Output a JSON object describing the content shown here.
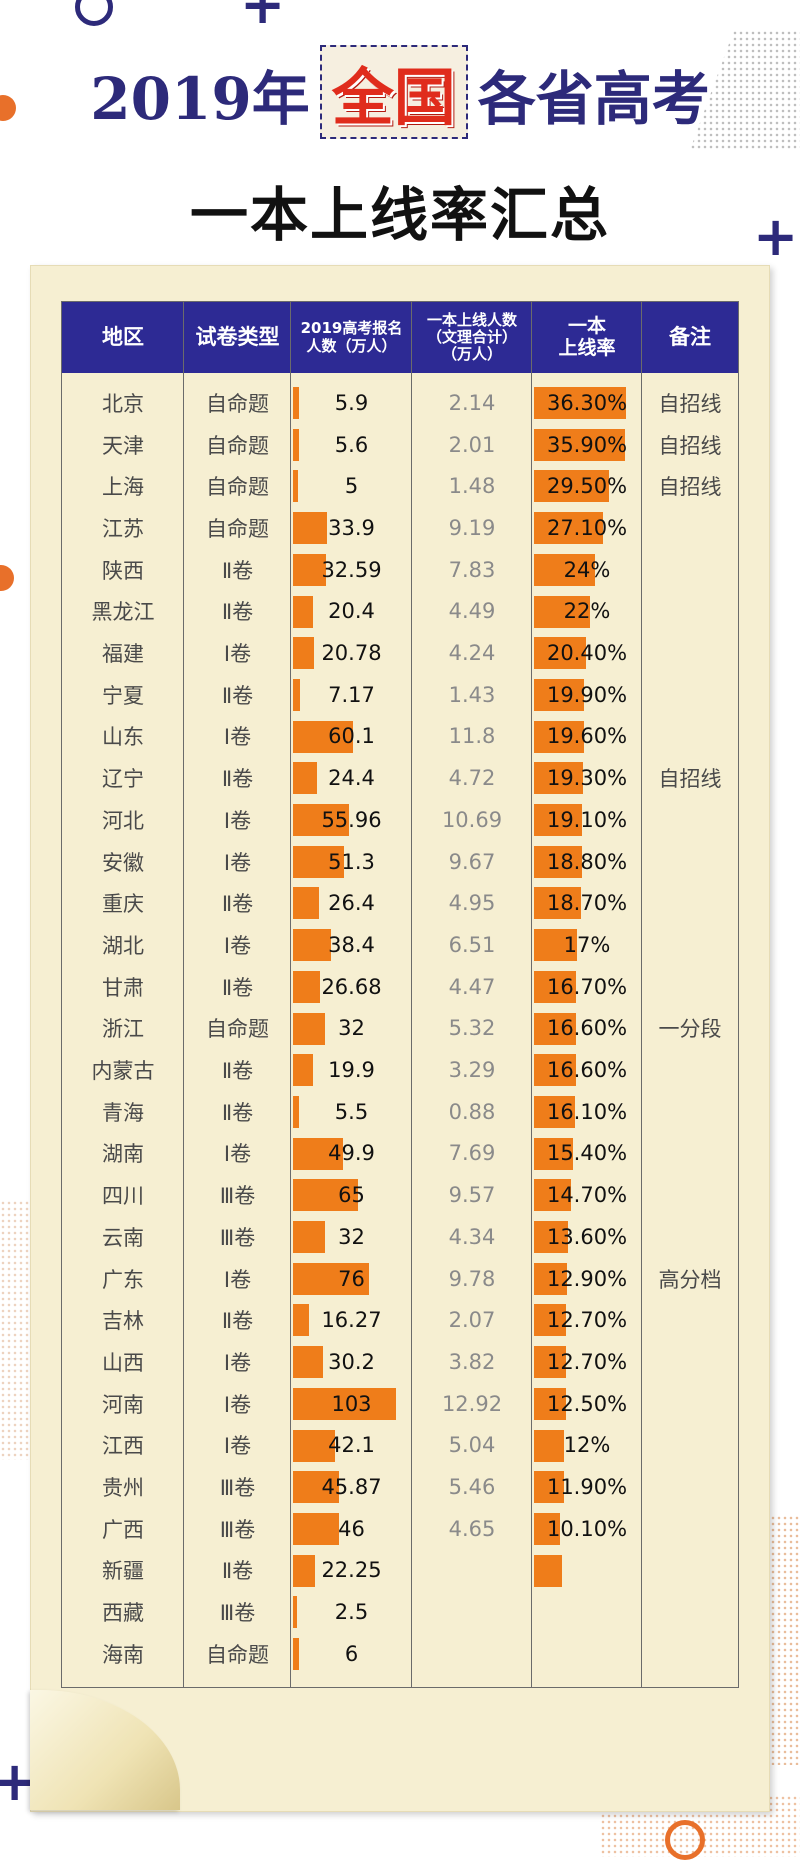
{
  "title": {
    "prefix": "2019年",
    "highlight": "全国",
    "suffix": "各省高考",
    "line2": "一本上线率汇总"
  },
  "colors": {
    "header_bg": "#2d2a94",
    "bar": "#ef7d1a",
    "highlight_text": "#e02c1c",
    "paper": "#f6efd2"
  },
  "table": {
    "headers": {
      "region": "地区",
      "paper_type": "试卷类型",
      "registrants": [
        "2019高考报名",
        "人数（万人）"
      ],
      "passers": [
        "一本上线人数",
        "（文理合计）",
        "（万人）"
      ],
      "rate": [
        "一本",
        "上线率"
      ],
      "note": "备注"
    }
  },
  "chart_data": {
    "type": "table",
    "columns": [
      "地区",
      "试卷类型",
      "2019高考报名人数（万人）",
      "一本上线人数（文理合计）（万人）",
      "一本上线率",
      "备注"
    ],
    "registrants_max": 103,
    "rate_max": 36.3,
    "rows": [
      {
        "region": "北京",
        "type": "自命题",
        "registrants": "5.9",
        "passers": "2.14",
        "rate": "36.30%",
        "rate_value": 36.3,
        "note": "自招线"
      },
      {
        "region": "天津",
        "type": "自命题",
        "registrants": "5.6",
        "passers": "2.01",
        "rate": "35.90%",
        "rate_value": 35.9,
        "note": "自招线"
      },
      {
        "region": "上海",
        "type": "自命题",
        "registrants": "5",
        "passers": "1.48",
        "rate": "29.50%",
        "rate_value": 29.5,
        "note": "自招线"
      },
      {
        "region": "江苏",
        "type": "自命题",
        "registrants": "33.9",
        "passers": "9.19",
        "rate": "27.10%",
        "rate_value": 27.1,
        "note": ""
      },
      {
        "region": "陕西",
        "type": "Ⅱ卷",
        "registrants": "32.59",
        "passers": "7.83",
        "rate": "24%",
        "rate_value": 24,
        "note": ""
      },
      {
        "region": "黑龙江",
        "type": "Ⅱ卷",
        "registrants": "20.4",
        "passers": "4.49",
        "rate": "22%",
        "rate_value": 22,
        "note": ""
      },
      {
        "region": "福建",
        "type": "Ⅰ卷",
        "registrants": "20.78",
        "passers": "4.24",
        "rate": "20.40%",
        "rate_value": 20.4,
        "note": ""
      },
      {
        "region": "宁夏",
        "type": "Ⅱ卷",
        "registrants": "7.17",
        "passers": "1.43",
        "rate": "19.90%",
        "rate_value": 19.9,
        "note": ""
      },
      {
        "region": "山东",
        "type": "Ⅰ卷",
        "registrants": "60.1",
        "passers": "11.8",
        "rate": "19.60%",
        "rate_value": 19.6,
        "note": ""
      },
      {
        "region": "辽宁",
        "type": "Ⅱ卷",
        "registrants": "24.4",
        "passers": "4.72",
        "rate": "19.30%",
        "rate_value": 19.3,
        "note": "自招线"
      },
      {
        "region": "河北",
        "type": "Ⅰ卷",
        "registrants": "55.96",
        "passers": "10.69",
        "rate": "19.10%",
        "rate_value": 19.1,
        "note": ""
      },
      {
        "region": "安徽",
        "type": "Ⅰ卷",
        "registrants": "51.3",
        "passers": "9.67",
        "rate": "18.80%",
        "rate_value": 18.8,
        "note": ""
      },
      {
        "region": "重庆",
        "type": "Ⅱ卷",
        "registrants": "26.4",
        "passers": "4.95",
        "rate": "18.70%",
        "rate_value": 18.7,
        "note": ""
      },
      {
        "region": "湖北",
        "type": "Ⅰ卷",
        "registrants": "38.4",
        "passers": "6.51",
        "rate": "17%",
        "rate_value": 17,
        "note": ""
      },
      {
        "region": "甘肃",
        "type": "Ⅱ卷",
        "registrants": "26.68",
        "passers": "4.47",
        "rate": "16.70%",
        "rate_value": 16.7,
        "note": ""
      },
      {
        "region": "浙江",
        "type": "自命题",
        "registrants": "32",
        "passers": "5.32",
        "rate": "16.60%",
        "rate_value": 16.6,
        "note": "一分段"
      },
      {
        "region": "内蒙古",
        "type": "Ⅱ卷",
        "registrants": "19.9",
        "passers": "3.29",
        "rate": "16.60%",
        "rate_value": 16.6,
        "note": ""
      },
      {
        "region": "青海",
        "type": "Ⅱ卷",
        "registrants": "5.5",
        "passers": "0.88",
        "rate": "16.10%",
        "rate_value": 16.1,
        "note": ""
      },
      {
        "region": "湖南",
        "type": "Ⅰ卷",
        "registrants": "49.9",
        "passers": "7.69",
        "rate": "15.40%",
        "rate_value": 15.4,
        "note": ""
      },
      {
        "region": "四川",
        "type": "Ⅲ卷",
        "registrants": "65",
        "passers": "9.57",
        "rate": "14.70%",
        "rate_value": 14.7,
        "note": ""
      },
      {
        "region": "云南",
        "type": "Ⅲ卷",
        "registrants": "32",
        "passers": "4.34",
        "rate": "13.60%",
        "rate_value": 13.6,
        "note": ""
      },
      {
        "region": "广东",
        "type": "Ⅰ卷",
        "registrants": "76",
        "passers": "9.78",
        "rate": "12.90%",
        "rate_value": 12.9,
        "note": "高分档"
      },
      {
        "region": "吉林",
        "type": "Ⅱ卷",
        "registrants": "16.27",
        "passers": "2.07",
        "rate": "12.70%",
        "rate_value": 12.7,
        "note": ""
      },
      {
        "region": "山西",
        "type": "Ⅰ卷",
        "registrants": "30.2",
        "passers": "3.82",
        "rate": "12.70%",
        "rate_value": 12.7,
        "note": ""
      },
      {
        "region": "河南",
        "type": "Ⅰ卷",
        "registrants": "103",
        "passers": "12.92",
        "rate": "12.50%",
        "rate_value": 12.5,
        "note": ""
      },
      {
        "region": "江西",
        "type": "Ⅰ卷",
        "registrants": "42.1",
        "passers": "5.04",
        "rate": "12%",
        "rate_value": 12,
        "note": ""
      },
      {
        "region": "贵州",
        "type": "Ⅲ卷",
        "registrants": "45.87",
        "passers": "5.46",
        "rate": "11.90%",
        "rate_value": 11.9,
        "note": ""
      },
      {
        "region": "广西",
        "type": "Ⅲ卷",
        "registrants": "46",
        "passers": "4.65",
        "rate": "10.10%",
        "rate_value": 10.1,
        "note": ""
      },
      {
        "region": "新疆",
        "type": "Ⅱ卷",
        "registrants": "22.25",
        "passers": "",
        "rate": "",
        "rate_value": 11,
        "note": ""
      },
      {
        "region": "西藏",
        "type": "Ⅲ卷",
        "registrants": "2.5",
        "passers": "",
        "rate": "",
        "rate_value": null,
        "note": ""
      },
      {
        "region": "海南",
        "type": "自命题",
        "registrants": "6",
        "passers": "",
        "rate": "",
        "rate_value": null,
        "note": ""
      }
    ]
  }
}
